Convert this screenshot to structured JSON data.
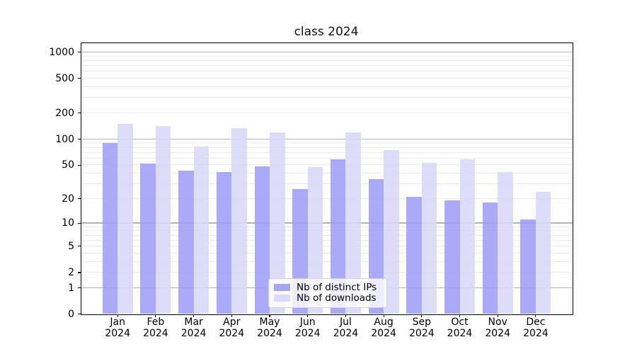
{
  "chart_data": {
    "type": "bar",
    "title": "class 2024",
    "categories": [
      "Jan",
      "Feb",
      "Mar",
      "Apr",
      "May",
      "Jun",
      "Jul",
      "Aug",
      "Sep",
      "Oct",
      "Nov",
      "Dec"
    ],
    "category_year": "2024",
    "series": [
      {
        "name": "Nb of distinct IPs",
        "color": "#9b9bf7",
        "values": [
          90,
          52,
          43,
          41,
          48,
          26,
          58,
          34,
          21,
          19,
          18,
          11
        ]
      },
      {
        "name": "Nb of downloads",
        "color": "#d7d7f9",
        "values": [
          150,
          140,
          81,
          133,
          120,
          47,
          119,
          75,
          53,
          58,
          41,
          24
        ]
      }
    ],
    "yscale": "log10(1+x)",
    "ylim": [
      0,
      1300
    ],
    "y_tick_labels": [
      "0",
      "1",
      "2",
      "5",
      "10",
      "20",
      "50",
      "100",
      "200",
      "500",
      "1000"
    ],
    "y_tick_values": [
      0,
      1,
      2,
      5,
      10,
      20,
      50,
      100,
      200,
      500,
      1000
    ],
    "major_grid_values": [
      1,
      10,
      100,
      1000
    ],
    "minor_grid_values": [
      2,
      3,
      4,
      5,
      6,
      7,
      8,
      9,
      20,
      30,
      40,
      50,
      60,
      70,
      80,
      90,
      200,
      300,
      400,
      500,
      600,
      700,
      800,
      900
    ],
    "grid": true,
    "legend_position": "lower center",
    "colors": {
      "major_grid": "#b4b4b4",
      "minor_grid": "#ebebeb",
      "axis": "#000000",
      "legend_border": "#d2d2d2",
      "background": "#ffffff"
    }
  }
}
